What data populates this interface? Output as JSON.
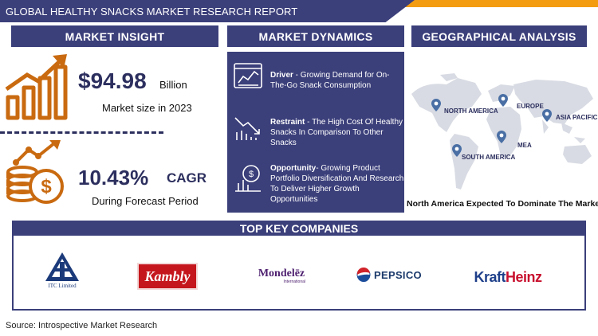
{
  "header": {
    "title": "GLOBAL HEALTHY SNACKS MARKET RESEARCH REPORT"
  },
  "market_insight": {
    "title": "MARKET INSIGHT",
    "market_size_value": "$94.98",
    "market_size_unit": "Billion",
    "market_size_label": "Market size in 2023",
    "cagr_value": "10.43%",
    "cagr_unit": "CAGR",
    "cagr_label": "During Forecast Period"
  },
  "market_dynamics": {
    "title": "MARKET DYNAMICS",
    "items": [
      {
        "label": "Driver",
        "text": " - Growing Demand for On-The-Go Snack Consumption",
        "icon": "browser-chart-icon"
      },
      {
        "label": "Restraint",
        "text": " - The High Cost Of Healthy Snacks In Comparison To Other Snacks",
        "icon": "declining-chart-icon"
      },
      {
        "label": "Opportunity",
        "text": "-  Growing Product Portfolio Diversification And Research To Deliver Higher Growth Opportunities",
        "icon": "growth-coin-icon"
      }
    ]
  },
  "geography": {
    "title": "GEOGRAPHICAL ANALYSIS",
    "regions": [
      "NORTH AMERICA",
      "EUROPE",
      "ASIA PACIFIC",
      "MEA",
      "SOUTH AMERICA"
    ],
    "caption": "North America Expected To Dominate The Market"
  },
  "companies": {
    "title": "TOP KEY COMPANIES",
    "logos": [
      {
        "name": "ITC Limited",
        "caption": "ITC Limited"
      },
      {
        "name": "Kambly",
        "caption": "Kambly"
      },
      {
        "name": "Mondelez International",
        "caption": "Mondelēz",
        "sub": "International"
      },
      {
        "name": "PepsiCo",
        "caption": "PEPSICO"
      },
      {
        "name": "Kraft Heinz",
        "caption_a": "Kraft",
        "caption_b": "Heinz"
      }
    ]
  },
  "source": "Source: Introspective Market Research",
  "colors": {
    "navy": "#3b3f7a",
    "orange": "#c96a10",
    "accent": "#f39c12"
  }
}
